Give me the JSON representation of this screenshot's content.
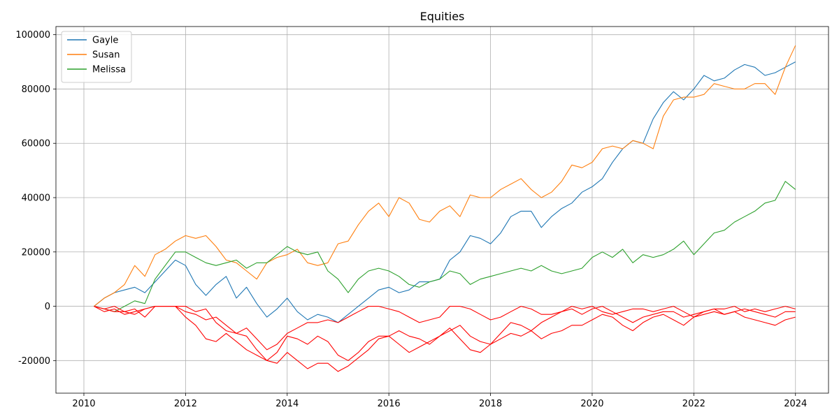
{
  "chart_data": {
    "type": "line",
    "title": "Equities",
    "xlabel": "",
    "ylabel": "",
    "xlim": [
      2009.45,
      2024.65
    ],
    "ylim": [
      -32000,
      103000
    ],
    "xticks": [
      2010,
      2012,
      2014,
      2016,
      2018,
      2020,
      2022,
      2024
    ],
    "yticks": [
      -20000,
      0,
      20000,
      40000,
      60000,
      80000,
      100000
    ],
    "grid": true,
    "legend_position": "top-left",
    "x": [
      2010.2,
      2010.4,
      2010.6,
      2010.8,
      2011.0,
      2011.2,
      2011.4,
      2011.6,
      2011.8,
      2012.0,
      2012.2,
      2012.4,
      2012.6,
      2012.8,
      2013.0,
      2013.2,
      2013.4,
      2013.6,
      2013.8,
      2014.0,
      2014.2,
      2014.4,
      2014.6,
      2014.8,
      2015.0,
      2015.2,
      2015.4,
      2015.6,
      2015.8,
      2016.0,
      2016.2,
      2016.4,
      2016.6,
      2016.8,
      2017.0,
      2017.2,
      2017.4,
      2017.6,
      2017.8,
      2018.0,
      2018.2,
      2018.4,
      2018.6,
      2018.8,
      2019.0,
      2019.2,
      2019.4,
      2019.6,
      2019.8,
      2020.0,
      2020.2,
      2020.4,
      2020.6,
      2020.8,
      2021.0,
      2021.2,
      2021.4,
      2021.6,
      2021.8,
      2022.0,
      2022.2,
      2022.4,
      2022.6,
      2022.8,
      2023.0,
      2023.2,
      2023.4,
      2023.6,
      2023.8,
      2024.0
    ],
    "series": [
      {
        "name": "Gayle",
        "color": "#1f77b4",
        "values": [
          0,
          3000,
          5000,
          6000,
          7000,
          5000,
          9000,
          13000,
          17000,
          15000,
          8000,
          4000,
          8000,
          11000,
          3000,
          7000,
          1000,
          -4000,
          -1000,
          3000,
          -2000,
          -5000,
          -3000,
          -4000,
          -6000,
          -3000,
          0,
          3000,
          6000,
          7000,
          5000,
          6000,
          9000,
          9000,
          10000,
          17000,
          20000,
          26000,
          25000,
          23000,
          27000,
          33000,
          35000,
          35000,
          29000,
          33000,
          36000,
          38000,
          42000,
          44000,
          47000,
          53000,
          58000,
          61000,
          60000,
          69000,
          75000,
          79000,
          76000,
          80000,
          85000,
          83000,
          84000,
          87000,
          89000,
          88000,
          85000,
          86000,
          88000,
          90000
        ]
      },
      {
        "name": "Susan",
        "color": "#ff7f0e",
        "values": [
          0,
          3000,
          5000,
          8000,
          15000,
          11000,
          19000,
          21000,
          24000,
          26000,
          25000,
          26000,
          22000,
          17000,
          16000,
          13000,
          10000,
          16000,
          18000,
          19000,
          21000,
          16000,
          15000,
          16000,
          23000,
          24000,
          30000,
          35000,
          38000,
          33000,
          40000,
          38000,
          32000,
          31000,
          35000,
          37000,
          33000,
          41000,
          40000,
          40000,
          43000,
          45000,
          47000,
          43000,
          40000,
          42000,
          46000,
          52000,
          51000,
          53000,
          58000,
          59000,
          58000,
          61000,
          60000,
          58000,
          70000,
          76000,
          77000,
          77000,
          78000,
          82000,
          81000,
          80000,
          80000,
          82000,
          82000,
          78000,
          88000,
          96000
        ]
      },
      {
        "name": "Melissa",
        "color": "#2ca02c",
        "values": [
          0,
          -1000,
          -2000,
          0,
          2000,
          1000,
          10000,
          15000,
          20000,
          20000,
          18000,
          16000,
          15000,
          16000,
          17000,
          14000,
          16000,
          16000,
          19000,
          22000,
          20000,
          19000,
          20000,
          13000,
          10000,
          5000,
          10000,
          13000,
          14000,
          13000,
          11000,
          8000,
          7000,
          9000,
          10000,
          13000,
          12000,
          8000,
          10000,
          11000,
          12000,
          13000,
          14000,
          13000,
          15000,
          13000,
          12000,
          13000,
          14000,
          18000,
          20000,
          18000,
          21000,
          16000,
          19000,
          18000,
          19000,
          21000,
          24000,
          19000,
          23000,
          27000,
          28000,
          31000,
          33000,
          35000,
          38000,
          39000,
          46000,
          43000
        ]
      },
      {
        "name": "",
        "color": "#ff0000",
        "values": [
          0,
          -1000,
          -2000,
          -2000,
          -3000,
          -1000,
          0,
          0,
          0,
          -2000,
          -3000,
          -5000,
          -4000,
          -7000,
          -10000,
          -8000,
          -12000,
          -16000,
          -14000,
          -10000,
          -8000,
          -6000,
          -6000,
          -5000,
          -6000,
          -4000,
          -2000,
          0,
          0,
          -1000,
          -2000,
          -4000,
          -6000,
          -5000,
          -4000,
          0,
          0,
          -1000,
          -3000,
          -5000,
          -4000,
          -2000,
          0,
          -1000,
          -3000,
          -3000,
          -2000,
          0,
          -1000,
          0,
          -2000,
          -3000,
          -2000,
          -1000,
          -1000,
          -2000,
          -1000,
          0,
          -2000,
          -4000,
          -2000,
          -1000,
          -1000,
          0,
          -2000,
          -1000,
          -2000,
          -1000,
          0,
          -1000
        ]
      },
      {
        "name": "",
        "color": "#ff0000",
        "values": [
          0,
          -1000,
          0,
          -2000,
          -1000,
          -4000,
          0,
          0,
          0,
          0,
          -2000,
          -1000,
          -6000,
          -9000,
          -10000,
          -11000,
          -16000,
          -20000,
          -17000,
          -11000,
          -12000,
          -14000,
          -11000,
          -13000,
          -18000,
          -20000,
          -17000,
          -13000,
          -11000,
          -11000,
          -9000,
          -11000,
          -12000,
          -14000,
          -11000,
          -9000,
          -7000,
          -11000,
          -13000,
          -14000,
          -10000,
          -6000,
          -7000,
          -9000,
          -6000,
          -4000,
          -2000,
          -1000,
          -3000,
          -1000,
          0,
          -2000,
          -4000,
          -6000,
          -4000,
          -3000,
          -2000,
          -2000,
          -4000,
          -3000,
          -2000,
          -1000,
          -3000,
          -2000,
          -1000,
          -2000,
          -3000,
          -4000,
          -2000,
          -2000
        ]
      },
      {
        "name": "",
        "color": "#ff0000",
        "values": [
          0,
          -2000,
          -1000,
          -3000,
          -2000,
          -1000,
          0,
          0,
          0,
          -4000,
          -7000,
          -12000,
          -13000,
          -10000,
          -13000,
          -16000,
          -18000,
          -20000,
          -21000,
          -17000,
          -20000,
          -23000,
          -21000,
          -21000,
          -24000,
          -22000,
          -19000,
          -16000,
          -12000,
          -11000,
          -14000,
          -17000,
          -15000,
          -13000,
          -11000,
          -8000,
          -12000,
          -16000,
          -17000,
          -14000,
          -12000,
          -10000,
          -11000,
          -9000,
          -12000,
          -10000,
          -9000,
          -7000,
          -7000,
          -5000,
          -3000,
          -4000,
          -7000,
          -9000,
          -6000,
          -4000,
          -3000,
          -5000,
          -7000,
          -4000,
          -3000,
          -2000,
          -3000,
          -2000,
          -4000,
          -5000,
          -6000,
          -7000,
          -5000,
          -4000
        ]
      }
    ]
  }
}
